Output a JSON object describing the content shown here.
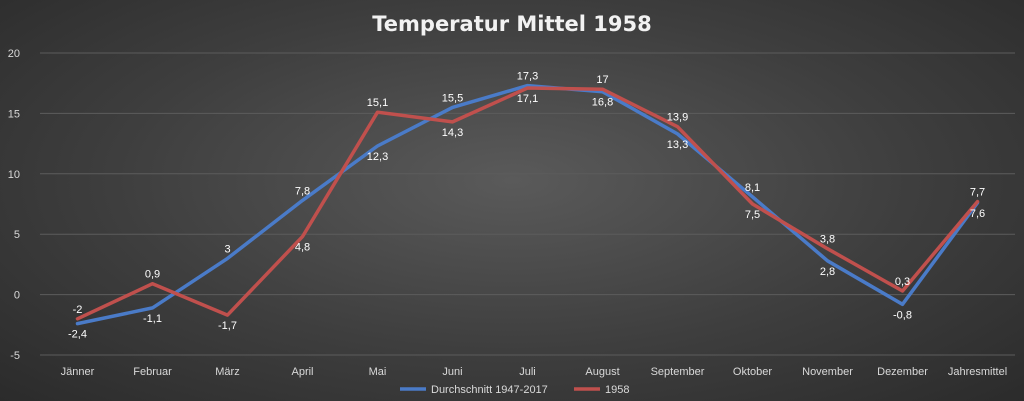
{
  "chart_data": {
    "type": "line",
    "title": "Temperatur Mittel 1958",
    "xlabel": "",
    "ylabel": "",
    "categories": [
      "Jänner",
      "Februar",
      "März",
      "April",
      "Mai",
      "Juni",
      "Juli",
      "August",
      "September",
      "Oktober",
      "November",
      "Dezember",
      "Jahresmittel"
    ],
    "yticks": [
      "-5",
      "0",
      "5",
      "10",
      "15",
      "20"
    ],
    "ylim": [
      -5,
      20
    ],
    "grid": true,
    "legend_position": "bottom",
    "series": [
      {
        "name": "Durchschnitt 1947-2017",
        "color": "#4a7bc8",
        "values": [
          -2.4,
          -1.1,
          3,
          7.8,
          12.3,
          15.5,
          17.3,
          16.8,
          13.3,
          8.1,
          2.8,
          -0.8,
          7.6
        ],
        "labels": [
          "-2,4",
          "-1,1",
          "3",
          "7,8",
          "12,3",
          "15,5",
          "17,3",
          "16,8",
          "13,3",
          "8,1",
          "2,8",
          "-0,8",
          "7,6"
        ]
      },
      {
        "name": "1958",
        "color": "#c0504d",
        "values": [
          -2,
          0.9,
          -1.7,
          4.8,
          15.1,
          14.3,
          17.1,
          17,
          13.9,
          7.5,
          3.8,
          0.3,
          7.7
        ],
        "labels": [
          "-2",
          "0,9",
          "-1,7",
          "4,8",
          "15,1",
          "14,3",
          "17,1",
          "17",
          "13,9",
          "7,5",
          "3,8",
          "0,3",
          "7,7"
        ]
      }
    ]
  }
}
